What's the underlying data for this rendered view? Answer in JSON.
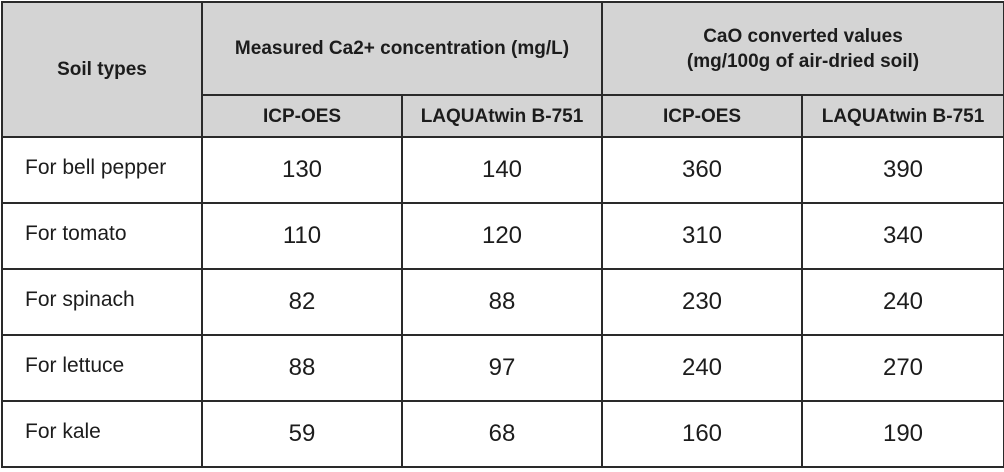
{
  "header": {
    "soil_types": "Soil types",
    "measured": "Measured Ca2+ concentration (mg/L)",
    "cao_line1": "CaO converted values",
    "cao_line2": "(mg/100g of air-dried soil)",
    "sub": [
      "ICP-OES",
      "LAQUAtwin B-751",
      "ICP-OES",
      "LAQUAtwin B-751"
    ]
  },
  "rows": [
    {
      "soil": "For bell pepper",
      "values": [
        "130",
        "140",
        "360",
        "390"
      ]
    },
    {
      "soil": "For tomato",
      "values": [
        "110",
        "120",
        "310",
        "340"
      ]
    },
    {
      "soil": "For spinach",
      "values": [
        "82",
        "88",
        "230",
        "240"
      ]
    },
    {
      "soil": "For lettuce",
      "values": [
        "88",
        "97",
        "240",
        "270"
      ]
    },
    {
      "soil": "For kale",
      "values": [
        "59",
        "68",
        "160",
        "190"
      ]
    }
  ]
}
